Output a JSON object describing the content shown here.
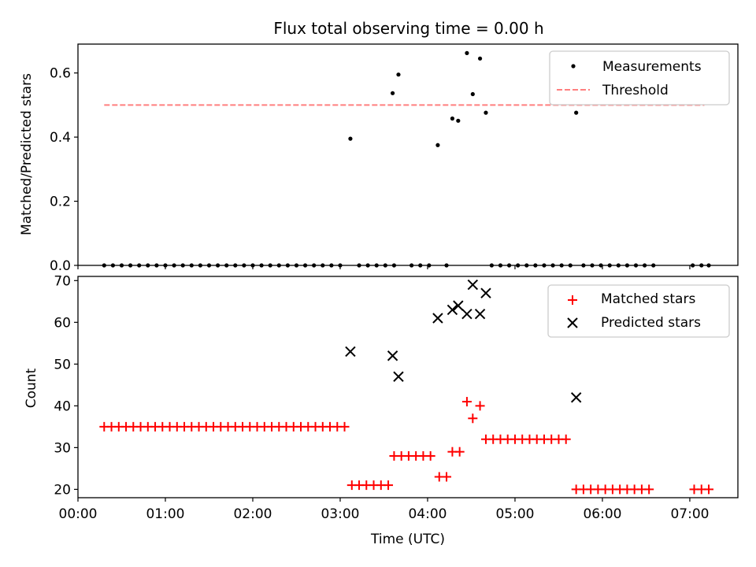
{
  "chart_data": [
    {
      "type": "scatter",
      "title": "Flux total observing time = 0.00 h",
      "ylabel": "Matched/Predicted stars",
      "xlim": [
        "00:00",
        "07:33"
      ],
      "ylim": [
        0,
        0.69
      ],
      "yticks": [
        "0.0",
        "0.2",
        "0.4",
        "0.6"
      ],
      "grid": false,
      "legend_position": "top-right",
      "series": [
        {
          "name": "Measurements",
          "color": "#000000",
          "marker": "dot",
          "points": [
            [
              "00:18",
              0
            ],
            [
              "00:24",
              0
            ],
            [
              "00:30",
              0
            ],
            [
              "00:36",
              0
            ],
            [
              "00:42",
              0
            ],
            [
              "00:48",
              0
            ],
            [
              "00:54",
              0
            ],
            [
              "01:00",
              0
            ],
            [
              "01:06",
              0
            ],
            [
              "01:12",
              0
            ],
            [
              "01:18",
              0
            ],
            [
              "01:24",
              0
            ],
            [
              "01:30",
              0
            ],
            [
              "01:36",
              0
            ],
            [
              "01:42",
              0
            ],
            [
              "01:48",
              0
            ],
            [
              "01:54",
              0
            ],
            [
              "02:00",
              0
            ],
            [
              "02:06",
              0
            ],
            [
              "02:12",
              0
            ],
            [
              "02:18",
              0
            ],
            [
              "02:24",
              0
            ],
            [
              "02:30",
              0
            ],
            [
              "02:36",
              0
            ],
            [
              "02:42",
              0
            ],
            [
              "02:48",
              0
            ],
            [
              "02:54",
              0
            ],
            [
              "03:00",
              0
            ],
            [
              "03:07",
              0.395
            ],
            [
              "03:13",
              0
            ],
            [
              "03:19",
              0
            ],
            [
              "03:25",
              0
            ],
            [
              "03:31",
              0
            ],
            [
              "03:37",
              0
            ],
            [
              "03:36",
              0.537
            ],
            [
              "03:40",
              0.595
            ],
            [
              "03:49",
              0
            ],
            [
              "03:55",
              0
            ],
            [
              "04:01",
              0
            ],
            [
              "04:07",
              0.375
            ],
            [
              "04:13",
              0
            ],
            [
              "04:17",
              0.458
            ],
            [
              "04:21",
              0.451
            ],
            [
              "04:27",
              0.662
            ],
            [
              "04:31",
              0.534
            ],
            [
              "04:36",
              0.645
            ],
            [
              "04:40",
              0.476
            ],
            [
              "04:44",
              0
            ],
            [
              "04:50",
              0
            ],
            [
              "04:56",
              0
            ],
            [
              "05:02",
              0
            ],
            [
              "05:08",
              0
            ],
            [
              "05:14",
              0
            ],
            [
              "05:20",
              0
            ],
            [
              "05:26",
              0
            ],
            [
              "05:32",
              0
            ],
            [
              "05:38",
              0
            ],
            [
              "05:42",
              0.476
            ],
            [
              "05:47",
              0
            ],
            [
              "05:53",
              0
            ],
            [
              "05:59",
              0
            ],
            [
              "06:05",
              0
            ],
            [
              "06:11",
              0
            ],
            [
              "06:17",
              0
            ],
            [
              "06:23",
              0
            ],
            [
              "06:29",
              0
            ],
            [
              "06:35",
              0
            ],
            [
              "07:02",
              0
            ],
            [
              "07:08",
              0
            ],
            [
              "07:13",
              0
            ]
          ]
        },
        {
          "name": "Threshold",
          "color": "#ff7f7f",
          "style": "dashed",
          "x": [
            "00:18",
            "07:10"
          ],
          "y": [
            0.5,
            0.5
          ]
        }
      ]
    },
    {
      "type": "scatter",
      "xlabel": "Time (UTC)",
      "ylabel": "Count",
      "xlim": [
        "00:00",
        "07:33"
      ],
      "ylim": [
        18,
        71
      ],
      "xticks": [
        "00:00",
        "01:00",
        "02:00",
        "03:00",
        "04:00",
        "05:00",
        "06:00",
        "07:00"
      ],
      "yticks": [
        "20",
        "30",
        "40",
        "50",
        "60",
        "70"
      ],
      "grid": false,
      "legend_position": "top-right",
      "series": [
        {
          "name": "Matched stars",
          "color": "#ff0000",
          "marker": "plus",
          "points": [
            [
              "00:18",
              35
            ],
            [
              "00:23",
              35
            ],
            [
              "00:28",
              35
            ],
            [
              "00:33",
              35
            ],
            [
              "00:38",
              35
            ],
            [
              "00:43",
              35
            ],
            [
              "00:48",
              35
            ],
            [
              "00:53",
              35
            ],
            [
              "00:58",
              35
            ],
            [
              "01:03",
              35
            ],
            [
              "01:08",
              35
            ],
            [
              "01:13",
              35
            ],
            [
              "01:18",
              35
            ],
            [
              "01:23",
              35
            ],
            [
              "01:28",
              35
            ],
            [
              "01:33",
              35
            ],
            [
              "01:38",
              35
            ],
            [
              "01:43",
              35
            ],
            [
              "01:48",
              35
            ],
            [
              "01:53",
              35
            ],
            [
              "01:58",
              35
            ],
            [
              "02:03",
              35
            ],
            [
              "02:08",
              35
            ],
            [
              "02:13",
              35
            ],
            [
              "02:18",
              35
            ],
            [
              "02:23",
              35
            ],
            [
              "02:28",
              35
            ],
            [
              "02:33",
              35
            ],
            [
              "02:38",
              35
            ],
            [
              "02:43",
              35
            ],
            [
              "02:48",
              35
            ],
            [
              "02:53",
              35
            ],
            [
              "02:58",
              35
            ],
            [
              "03:03",
              35
            ],
            [
              "03:08",
              21
            ],
            [
              "03:13",
              21
            ],
            [
              "03:18",
              21
            ],
            [
              "03:23",
              21
            ],
            [
              "03:28",
              21
            ],
            [
              "03:33",
              21
            ],
            [
              "03:37",
              28
            ],
            [
              "03:42",
              28
            ],
            [
              "03:47",
              28
            ],
            [
              "03:52",
              28
            ],
            [
              "03:57",
              28
            ],
            [
              "04:02",
              28
            ],
            [
              "04:08",
              23
            ],
            [
              "04:13",
              23
            ],
            [
              "04:17",
              29
            ],
            [
              "04:22",
              29
            ],
            [
              "04:27",
              41
            ],
            [
              "04:31",
              37
            ],
            [
              "04:36",
              40
            ],
            [
              "04:40",
              32
            ],
            [
              "04:45",
              32
            ],
            [
              "04:50",
              32
            ],
            [
              "04:55",
              32
            ],
            [
              "05:00",
              32
            ],
            [
              "05:05",
              32
            ],
            [
              "05:10",
              32
            ],
            [
              "05:15",
              32
            ],
            [
              "05:20",
              32
            ],
            [
              "05:25",
              32
            ],
            [
              "05:30",
              32
            ],
            [
              "05:35",
              32
            ],
            [
              "05:42",
              20
            ],
            [
              "05:47",
              20
            ],
            [
              "05:52",
              20
            ],
            [
              "05:57",
              20
            ],
            [
              "06:02",
              20
            ],
            [
              "06:07",
              20
            ],
            [
              "06:12",
              20
            ],
            [
              "06:17",
              20
            ],
            [
              "06:22",
              20
            ],
            [
              "06:27",
              20
            ],
            [
              "06:32",
              20
            ],
            [
              "07:03",
              20
            ],
            [
              "07:08",
              20
            ],
            [
              "07:13",
              20
            ]
          ]
        },
        {
          "name": "Predicted stars",
          "color": "#000000",
          "marker": "x",
          "points": [
            [
              "03:07",
              53
            ],
            [
              "03:36",
              52
            ],
            [
              "03:40",
              47
            ],
            [
              "04:07",
              61
            ],
            [
              "04:17",
              63
            ],
            [
              "04:21",
              64
            ],
            [
              "04:27",
              62
            ],
            [
              "04:31",
              69
            ],
            [
              "04:36",
              62
            ],
            [
              "04:40",
              67
            ],
            [
              "05:42",
              42
            ]
          ]
        }
      ]
    }
  ]
}
